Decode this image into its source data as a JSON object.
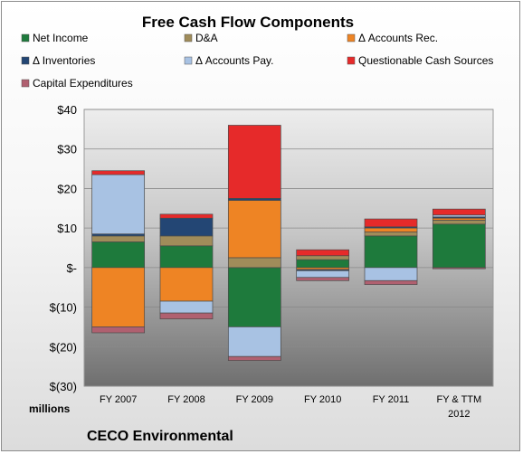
{
  "chart_data": {
    "type": "bar",
    "stacked": true,
    "title": "Free Cash Flow Components",
    "categories": [
      "FY 2007",
      "FY 2008",
      "FY 2009",
      "FY 2010",
      "FY 2011",
      "FY & TTM 2012"
    ],
    "ylim": [
      -30,
      40
    ],
    "yticks": [
      40,
      30,
      20,
      10,
      0,
      -10,
      -20,
      -30
    ],
    "ytick_labels": [
      "$40",
      "$30",
      "$20",
      "$10",
      "$-",
      "$(10)",
      "$(20)",
      "$(30)"
    ],
    "unit_label": "millions",
    "grid": true,
    "legend_position": "top",
    "series": [
      {
        "name": "Net Income",
        "color": "#1e7a3c",
        "values": [
          6.5,
          5.5,
          -15.0,
          2.0,
          8.0,
          11.0
        ]
      },
      {
        "name": "D&A",
        "color": "#a08c5a",
        "values": [
          1.5,
          2.5,
          2.5,
          1.0,
          1.0,
          1.0
        ]
      },
      {
        "name": "Δ Accounts Rec.",
        "color": "#ee8424",
        "values": [
          -15.0,
          -8.5,
          14.5,
          -0.5,
          1.0,
          0.5
        ]
      },
      {
        "name": "Δ Inventories",
        "color": "#234674",
        "values": [
          0.5,
          4.5,
          0.5,
          -0.3,
          0.3,
          0.3
        ]
      },
      {
        "name": "Δ Accounts Pay.",
        "color": "#a8c2e3",
        "values": [
          15.0,
          -3.0,
          -7.5,
          -1.7,
          -3.3,
          0.5
        ]
      },
      {
        "name": "Questionable Cash Sources",
        "color": "#e62a2a",
        "values": [
          1.0,
          1.0,
          18.5,
          1.5,
          2.0,
          1.5
        ]
      },
      {
        "name": "Capital Expenditures",
        "color": "#b06070",
        "values": [
          -1.5,
          -1.5,
          -1.0,
          -0.8,
          -1.0,
          -0.3
        ]
      }
    ]
  },
  "footer": {
    "company": "CECO Environmental"
  }
}
